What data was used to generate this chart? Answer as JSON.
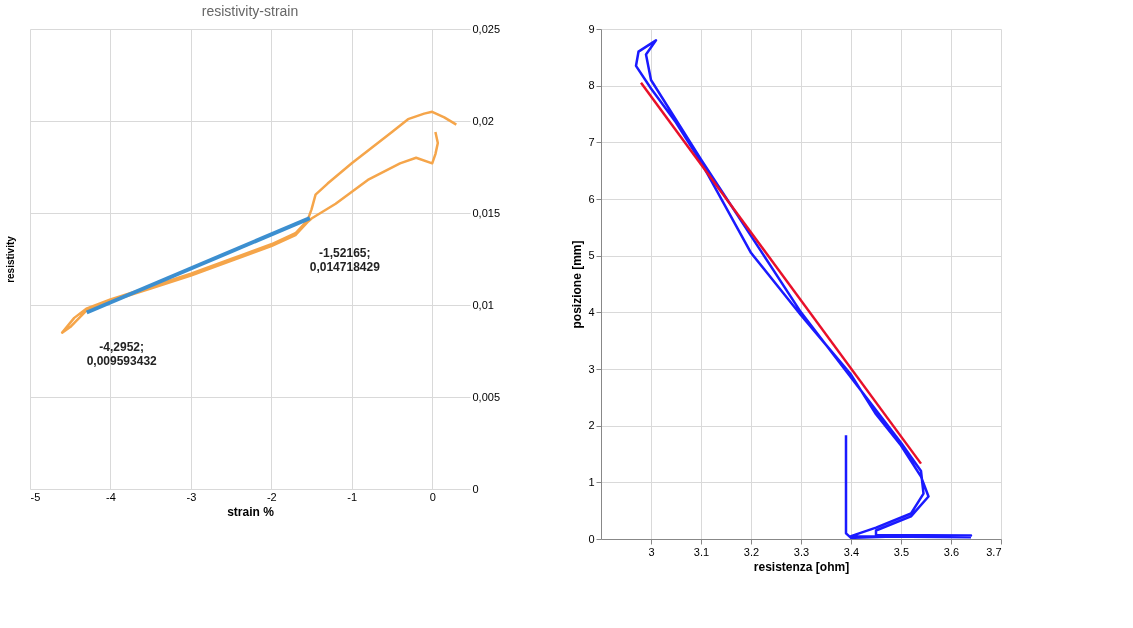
{
  "chart_data": [
    {
      "type": "line",
      "title": "resistivity-strain",
      "xlabel": "strain %",
      "ylabel": "resistivity",
      "xlim": [
        -5,
        0.47
      ],
      "xticks": [
        -5,
        -4,
        -3,
        -2,
        -1,
        0
      ],
      "ylim": [
        0,
        0.025
      ],
      "yticks": [
        0,
        {
          "value": 0.005,
          "label": "0,005"
        },
        {
          "value": 0.01,
          "label": "0,01"
        },
        {
          "value": 0.015,
          "label": "0,015"
        },
        {
          "value": 0.02,
          "label": "0,02"
        },
        {
          "value": 0.025,
          "label": "0,025"
        }
      ],
      "grid": true,
      "marker": "none",
      "line_style": "solid",
      "series": [
        {
          "color": "#f5a54a",
          "x": [
            0.3,
            0.15,
            0.0,
            -0.1,
            -0.3,
            -0.5,
            -1.0,
            -1.3,
            -1.45,
            -1.5,
            -1.55,
            -1.7,
            -2.0,
            -2.5,
            -3.0,
            -3.5,
            -4.0,
            -4.3,
            -4.45,
            -4.6,
            -4.5,
            -4.3,
            -4.0,
            -3.5,
            -3.0,
            -2.5,
            -2.0,
            -1.7,
            -1.55,
            -1.5,
            -1.2,
            -0.8,
            -0.4,
            -0.2,
            0.0,
            0.04,
            0.07,
            0.04
          ],
          "values": [
            0.0198,
            0.0202,
            0.0205,
            0.0204,
            0.0201,
            0.0194,
            0.0177,
            0.0166,
            0.016,
            0.0152,
            0.0146,
            0.0139,
            0.0133,
            0.0125,
            0.0117,
            0.011,
            0.0103,
            0.0098,
            0.0093,
            0.0085,
            0.0088,
            0.0097,
            0.0102,
            0.0109,
            0.0116,
            0.0124,
            0.0132,
            0.0138,
            0.0145,
            0.0147,
            0.0155,
            0.0168,
            0.0177,
            0.018,
            0.0177,
            0.0182,
            0.0188,
            0.0194
          ]
        },
        {
          "color": "#3c8fd0",
          "x": [
            -4.2952,
            -1.52165
          ],
          "values": [
            0.009593432,
            0.014718429
          ]
        }
      ],
      "annotations": [
        {
          "text": "-4,2952;\n0,009593432",
          "x": -4.2952,
          "y": 0.009593432
        },
        {
          "text": "-1,52165;\n0,014718429",
          "x": -1.52165,
          "y": 0.014718429
        }
      ]
    },
    {
      "type": "line",
      "xlabel": "resistenza [ohm]",
      "ylabel": "posizione [mm]",
      "xlim": [
        2.9,
        3.7
      ],
      "xticks": [
        3,
        3.1,
        3.2,
        3.3,
        3.4,
        3.5,
        3.6,
        3.7
      ],
      "ylim": [
        0,
        9
      ],
      "yticks": [
        0,
        1,
        2,
        3,
        4,
        5,
        6,
        7,
        8,
        9
      ],
      "grid": true,
      "marker": "none",
      "line_style": "solid",
      "series": [
        {
          "color": "#1a1aff",
          "x": [
            3.39,
            3.39,
            3.4,
            3.5,
            3.64,
            3.45,
            3.45,
            3.52,
            3.555,
            3.54,
            3.5,
            3.45,
            3.4,
            3.3,
            3.2,
            3.1,
            3.05,
            3.0,
            2.97,
            2.975,
            3.01,
            2.99,
            3.0,
            3.1,
            3.3,
            3.5,
            3.54,
            3.545,
            3.52,
            3.45,
            3.4,
            3.64
          ],
          "values": [
            1.83,
            0.1,
            0.02,
            0.05,
            0.06,
            0.07,
            0.15,
            0.4,
            0.75,
            1.1,
            1.65,
            2.2,
            2.9,
            3.95,
            5.05,
            6.65,
            7.35,
            7.95,
            8.35,
            8.6,
            8.8,
            8.55,
            8.1,
            6.7,
            4.0,
            1.7,
            1.2,
            0.8,
            0.45,
            0.2,
            0.05,
            0.03
          ]
        },
        {
          "color": "#e8102a",
          "x": [
            2.98,
            3.54
          ],
          "values": [
            8.05,
            1.33
          ]
        }
      ]
    }
  ]
}
